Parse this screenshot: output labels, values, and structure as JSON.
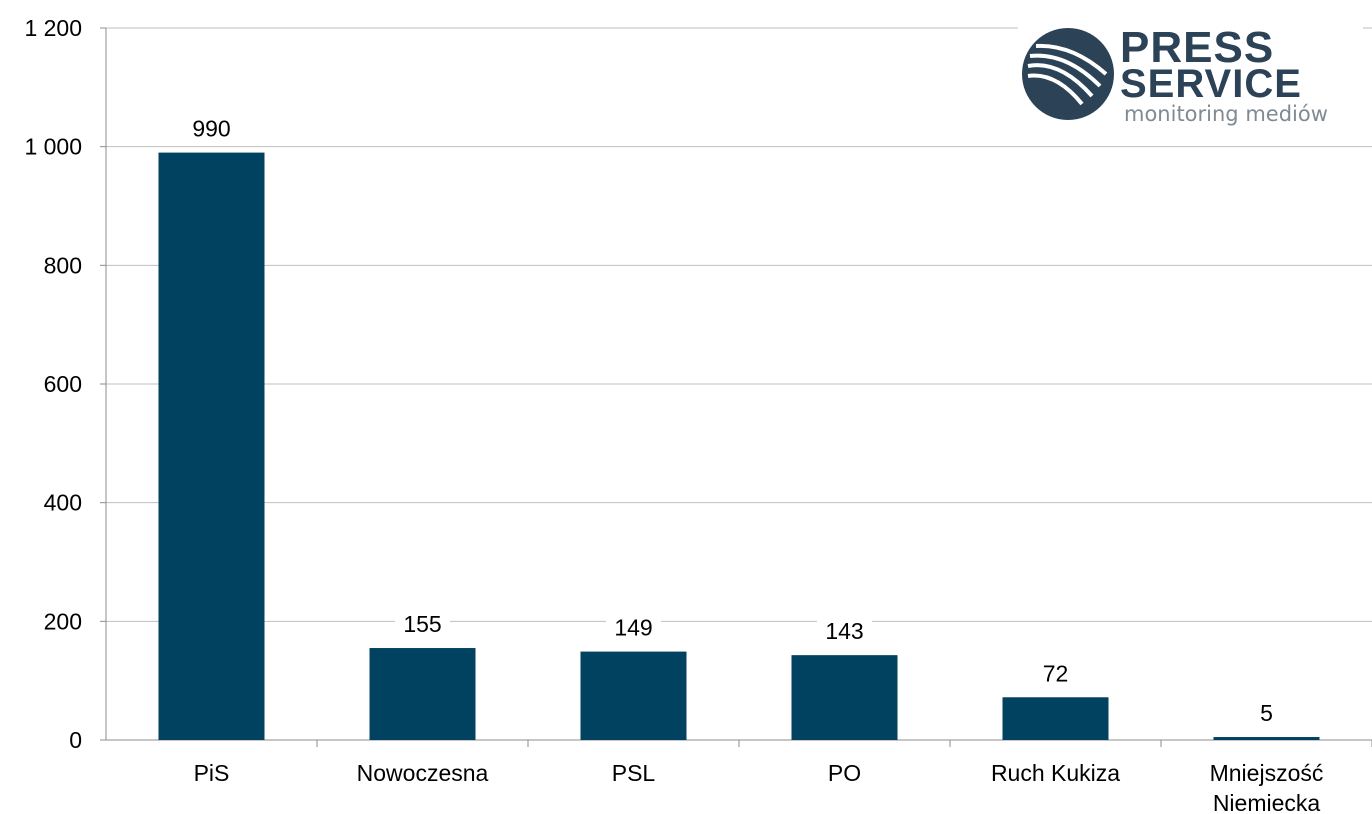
{
  "logo": {
    "line1": "PRESS",
    "line2": "SERVICE",
    "tagline": "monitoring mediów",
    "color": "#2b4257"
  },
  "chart_data": {
    "type": "bar",
    "categories": [
      "PiS",
      "Nowoczesna",
      "PSL",
      "PO",
      "Ruch Kukiza",
      "Mniejszość Niemiecka"
    ],
    "values": [
      990,
      155,
      149,
      143,
      72,
      5
    ],
    "data_labels": [
      "990",
      "155",
      "149",
      "143",
      "72",
      "5"
    ],
    "y_ticks": [
      0,
      200,
      400,
      600,
      800,
      1000,
      1200
    ],
    "y_tick_labels": [
      "0",
      "200",
      "400",
      "600",
      "800",
      "1 000",
      "1 200"
    ],
    "ylim": [
      0,
      1200
    ],
    "grid": true,
    "bar_color": "#00425f"
  }
}
